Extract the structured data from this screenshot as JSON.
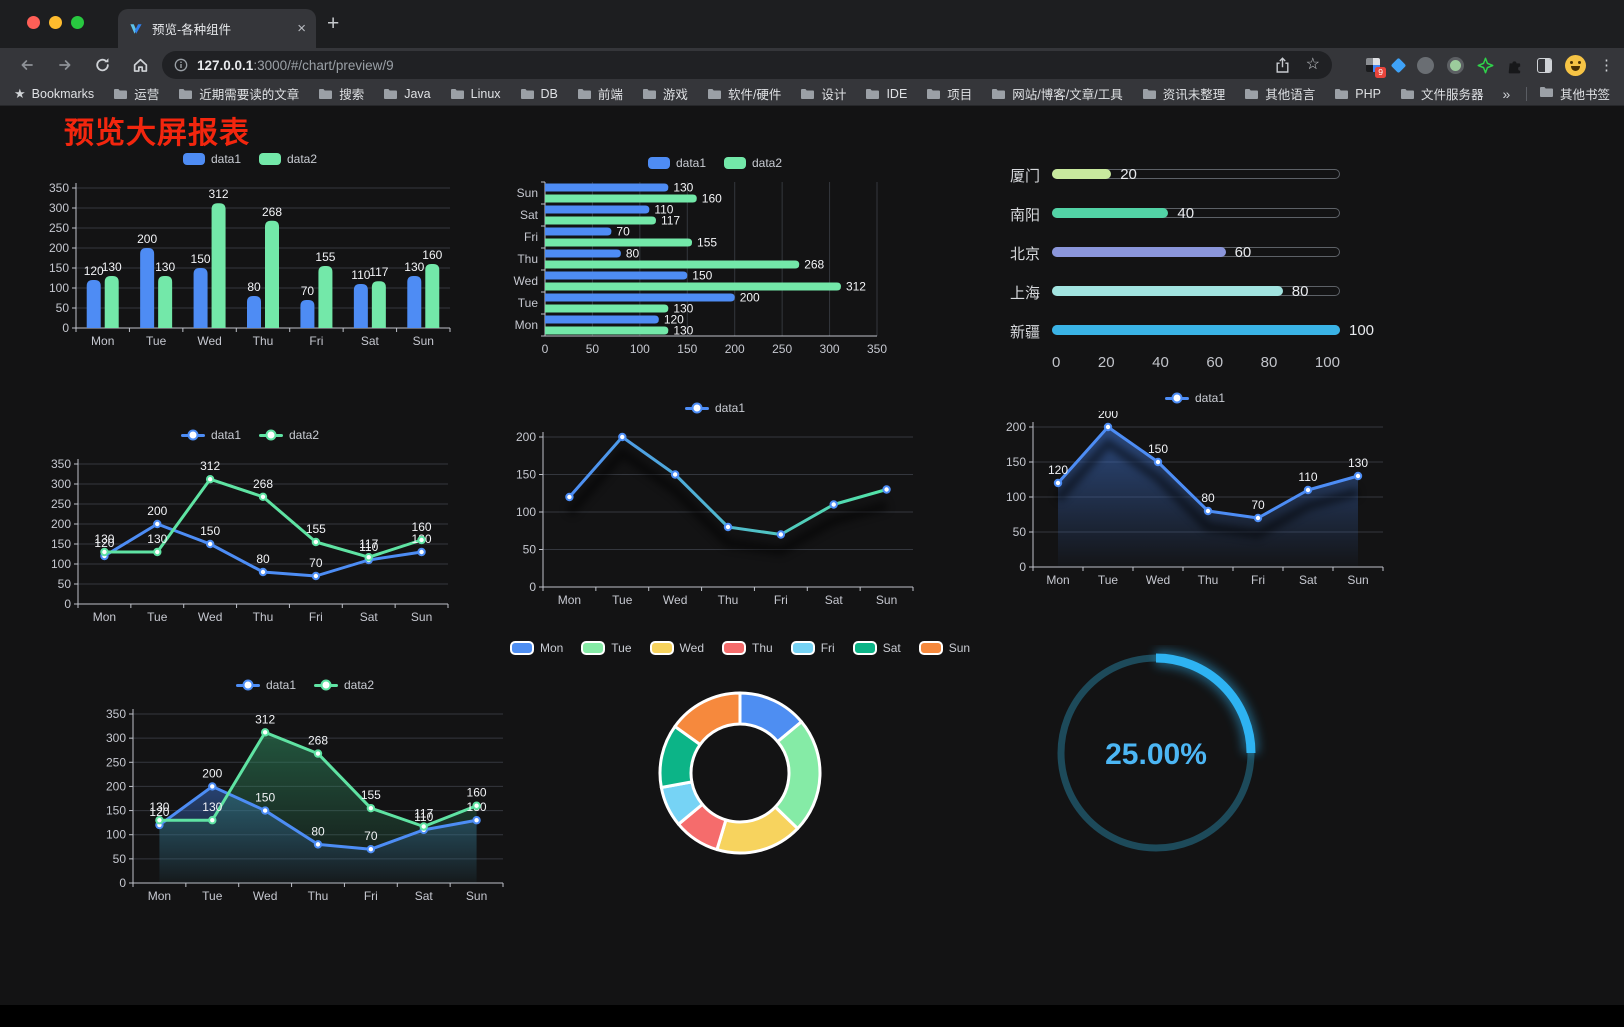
{
  "browser": {
    "tab_title": "预览-各种组件",
    "url": {
      "host": "127.0.0.1",
      "rest": ":3000/#/chart/preview/9"
    },
    "bookmarks_bar": {
      "star_label": "Bookmarks",
      "folders": [
        "运营",
        "近期需要读的文章",
        "搜索",
        "Java",
        "Linux",
        "DB",
        "前端",
        "游戏",
        "软件/硬件",
        "设计",
        "IDE",
        "项目",
        "网站/博客/文章/工具",
        "资讯未整理",
        "其他语言",
        "PHP",
        "文件服务器"
      ],
      "overflow": "»",
      "other": "其他书签"
    },
    "extension_badge": "9"
  },
  "page": {
    "title": "预览大屏报表",
    "title_color": "#f3260e"
  },
  "chart_data": [
    {
      "id": "bar-grouped",
      "type": "bar",
      "categories": [
        "Mon",
        "Tue",
        "Wed",
        "Thu",
        "Fri",
        "Sat",
        "Sun"
      ],
      "series": [
        {
          "name": "data1",
          "color": "#4e8cf4",
          "values": [
            120,
            200,
            150,
            80,
            70,
            110,
            130
          ]
        },
        {
          "name": "data2",
          "color": "#73e8a9",
          "values": [
            130,
            130,
            312,
            268,
            155,
            117,
            160
          ]
        }
      ],
      "ylim": [
        0,
        350
      ],
      "yticks": [
        0,
        50,
        100,
        150,
        200,
        250,
        300,
        350
      ],
      "legend": [
        "data1",
        "data2"
      ],
      "legend_position": "top",
      "grid": true
    },
    {
      "id": "bar-horizontal",
      "type": "hbar",
      "categories_top_to_bottom": [
        "Sun",
        "Sat",
        "Fri",
        "Thu",
        "Wed",
        "Tue",
        "Mon"
      ],
      "series": [
        {
          "name": "data1",
          "color": "#4e8cf4",
          "values": [
            130,
            110,
            70,
            80,
            150,
            200,
            120
          ]
        },
        {
          "name": "data2",
          "color": "#73e8a9",
          "values": [
            160,
            117,
            155,
            268,
            312,
            130,
            130
          ]
        }
      ],
      "xlim": [
        0,
        350
      ],
      "xticks": [
        0,
        50,
        100,
        150,
        200,
        250,
        300,
        350
      ],
      "legend": [
        "data1",
        "data2"
      ],
      "legend_position": "top",
      "grid": true
    },
    {
      "id": "progress-list",
      "type": "progress",
      "max": 100,
      "axis_ticks": [
        0,
        20,
        40,
        60,
        80,
        100
      ],
      "items": [
        {
          "label": "厦门",
          "value": 20,
          "color": "#c8e99e"
        },
        {
          "label": "南阳",
          "value": 40,
          "color": "#52d3a6"
        },
        {
          "label": "北京",
          "value": 60,
          "color": "#8b96db"
        },
        {
          "label": "上海",
          "value": 80,
          "color": "#a2e4e0"
        },
        {
          "label": "新疆",
          "value": 100,
          "color": "#3ab3e6"
        }
      ]
    },
    {
      "id": "line-basic",
      "type": "line",
      "categories": [
        "Mon",
        "Tue",
        "Wed",
        "Thu",
        "Fri",
        "Sat",
        "Sun"
      ],
      "series": [
        {
          "name": "data1",
          "color": "#4d8df5",
          "values": [
            120,
            200,
            150,
            80,
            70,
            110,
            130
          ],
          "labels": true,
          "marker": true
        },
        {
          "name": "data2",
          "color": "#5fe3a3",
          "values": [
            130,
            130,
            312,
            268,
            155,
            117,
            160
          ],
          "labels": true,
          "marker": true
        }
      ],
      "ylim": [
        0,
        350
      ],
      "yticks": [
        0,
        50,
        100,
        150,
        200,
        250,
        300,
        350
      ],
      "legend": [
        "data1",
        "data2"
      ],
      "legend_position": "top",
      "grid": true
    },
    {
      "id": "line-gradient",
      "type": "line",
      "categories": [
        "Mon",
        "Tue",
        "Wed",
        "Thu",
        "Fri",
        "Sat",
        "Sun"
      ],
      "series": [
        {
          "name": "data1",
          "color": "#4d8df5",
          "gradient": [
            "#4d8df5",
            "#53e6a6"
          ],
          "values": [
            120,
            200,
            150,
            80,
            70,
            110,
            130
          ],
          "labels": false,
          "marker": true,
          "shadow": true
        }
      ],
      "ylim": [
        0,
        200
      ],
      "yticks": [
        0,
        50,
        100,
        150,
        200
      ],
      "legend": [
        "data1"
      ],
      "legend_position": "top",
      "grid": true
    },
    {
      "id": "line-area",
      "type": "line",
      "categories": [
        "Mon",
        "Tue",
        "Wed",
        "Thu",
        "Fri",
        "Sat",
        "Sun"
      ],
      "series": [
        {
          "name": "data1",
          "color": "#4d8df5",
          "values": [
            120,
            200,
            150,
            80,
            70,
            110,
            130
          ],
          "labels": true,
          "marker": true,
          "shadow": true,
          "area": [
            "rgba(62,112,200,0.60)",
            "rgba(62,112,200,0.02)"
          ]
        }
      ],
      "ylim": [
        0,
        200
      ],
      "yticks": [
        0,
        50,
        100,
        150,
        200
      ],
      "legend": [
        "data1"
      ],
      "legend_position": "top",
      "grid": true
    },
    {
      "id": "line-area-dual",
      "type": "line",
      "categories": [
        "Mon",
        "Tue",
        "Wed",
        "Thu",
        "Fri",
        "Sat",
        "Sun"
      ],
      "series": [
        {
          "name": "data1",
          "color": "#4d8df5",
          "values": [
            120,
            200,
            150,
            80,
            70,
            110,
            130
          ],
          "labels": true,
          "marker": true,
          "area": [
            "rgba(56,105,190,0.55)",
            "rgba(56,105,190,0.03)"
          ]
        },
        {
          "name": "data2",
          "color": "#5fe3a3",
          "values": [
            130,
            130,
            312,
            268,
            155,
            117,
            160
          ],
          "labels": true,
          "marker": true,
          "area": [
            "rgba(47,140,96,0.55)",
            "rgba(47,140,96,0.03)"
          ]
        }
      ],
      "ylim": [
        0,
        350
      ],
      "yticks": [
        0,
        50,
        100,
        150,
        200,
        250,
        300,
        350
      ],
      "legend": [
        "data1",
        "data2"
      ],
      "legend_position": "top",
      "grid": true
    },
    {
      "id": "donut",
      "type": "donut",
      "border_color": "#ffffff",
      "items": [
        {
          "label": "Mon",
          "value": 120,
          "color": "#4e8ef2"
        },
        {
          "label": "Tue",
          "value": 200,
          "color": "#85eba6"
        },
        {
          "label": "Wed",
          "value": 150,
          "color": "#f7d35e"
        },
        {
          "label": "Thu",
          "value": 80,
          "color": "#f56c6c"
        },
        {
          "label": "Fri",
          "value": 70,
          "color": "#76d3f5"
        },
        {
          "label": "Sat",
          "value": 110,
          "color": "#0cb487"
        },
        {
          "label": "Sun",
          "value": 130,
          "color": "#f6893d"
        }
      ],
      "legend_position": "top"
    },
    {
      "id": "gauge",
      "type": "gauge",
      "value": 25,
      "max": 100,
      "label": "25.00%",
      "progress_color": "#2eb3f2",
      "track_color": "#1d4a5a",
      "text_color": "#4cb6f4"
    }
  ]
}
